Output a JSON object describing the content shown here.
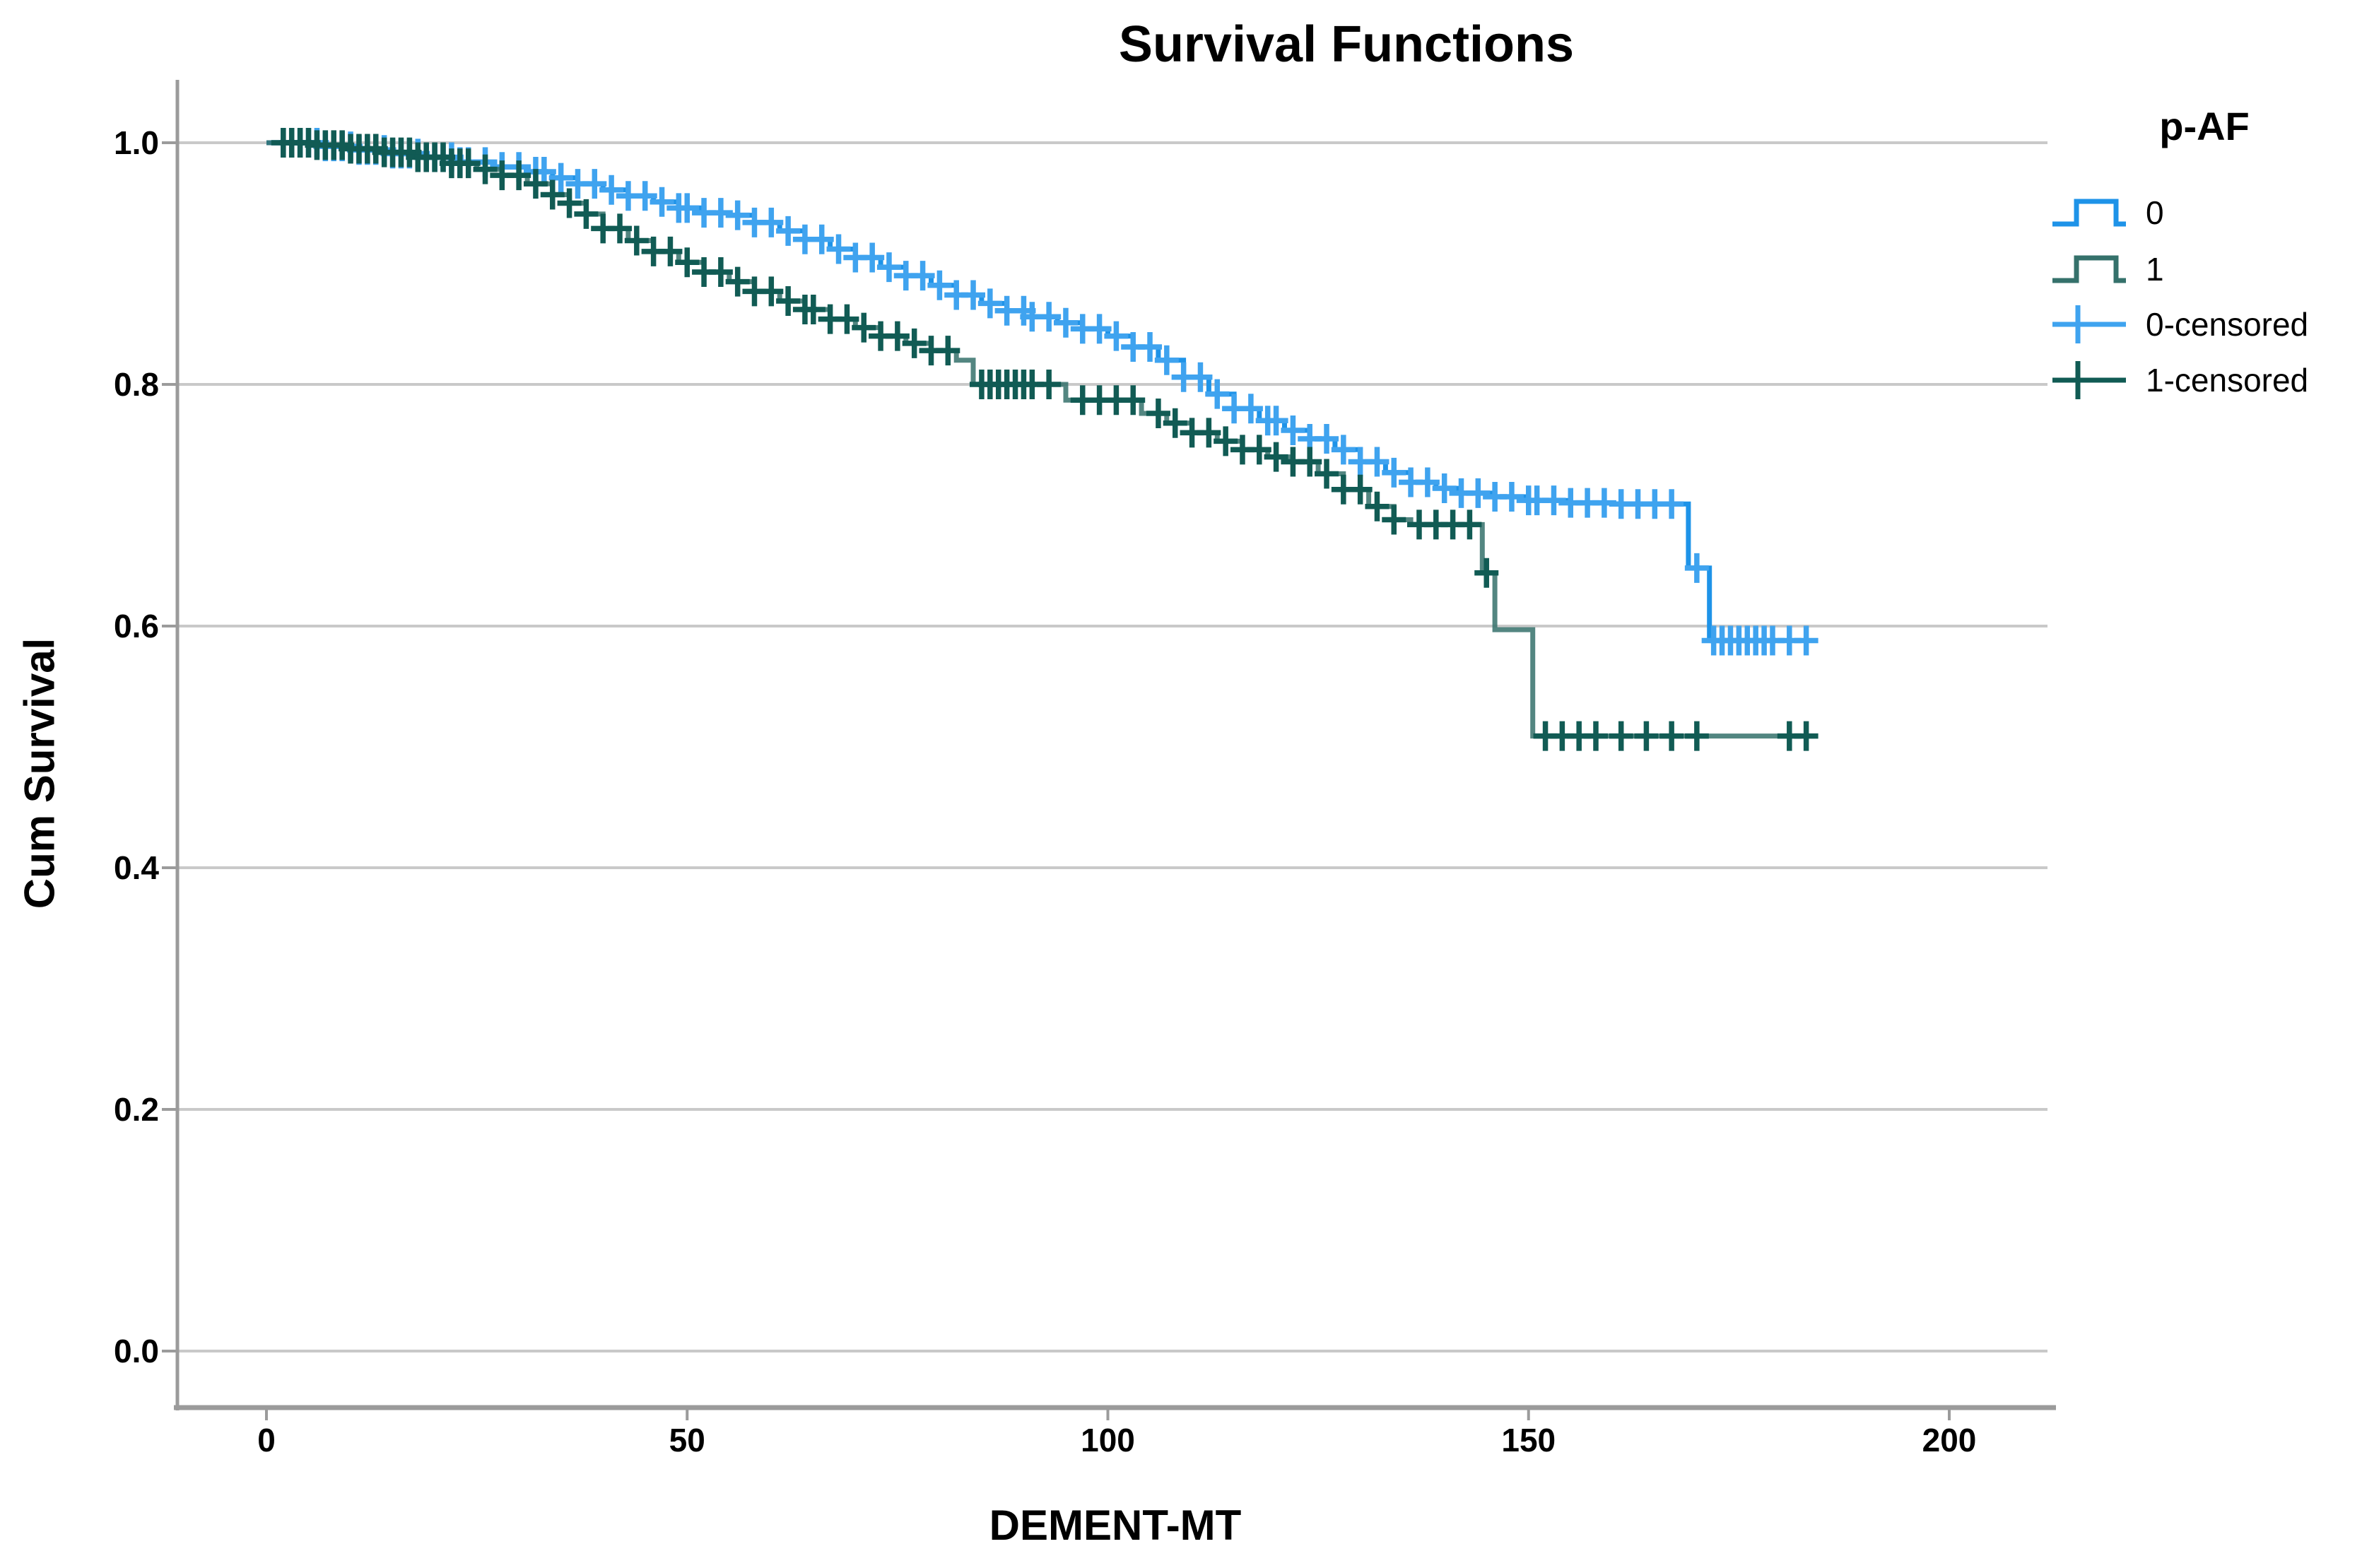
{
  "title": "Survival Functions",
  "x_axis": {
    "label": "DEMENT-MT",
    "ticks": [
      {
        "label": "0",
        "value": 0
      },
      {
        "label": "50",
        "value": 50
      },
      {
        "label": "100",
        "value": 100
      },
      {
        "label": "150",
        "value": 150
      },
      {
        "label": "200",
        "value": 200
      }
    ]
  },
  "y_axis": {
    "label": "Cum Survival",
    "ticks": [
      {
        "label": "1.0",
        "value": 1.0
      },
      {
        "label": "0.8",
        "value": 0.8
      },
      {
        "label": "0.6",
        "value": 0.6
      },
      {
        "label": "0.4",
        "value": 0.4
      },
      {
        "label": "0.2",
        "value": 0.2
      },
      {
        "label": "0.0",
        "value": 0.0
      }
    ]
  },
  "legend": {
    "title": "p-AF",
    "items": [
      {
        "label": "0",
        "type": "line",
        "color_key": "group0_line"
      },
      {
        "label": "1",
        "type": "line",
        "color_key": "group1_line"
      },
      {
        "label": "0-censored",
        "type": "censor",
        "color_key": "group0_censor"
      },
      {
        "label": "1-censored",
        "type": "censor",
        "color_key": "group1_censor"
      }
    ]
  },
  "colors": {
    "group0_line": "#1E93E8",
    "group0_censor": "#3FA3EF",
    "group1_line": "#35716B",
    "group1_censor": "#115B54",
    "grid": "#C9C9C9",
    "axis": "#9B9B9B",
    "text": "#000000"
  },
  "chart_data": {
    "type": "line",
    "subtype": "kaplan-meier-step-function",
    "title": "Survival Functions",
    "xlabel": "DEMENT-MT",
    "ylabel": "Cum Survival",
    "xlim": [
      0,
      212
    ],
    "ylim": [
      0.0,
      1.05
    ],
    "grid": "horizontal",
    "legend_position": "right",
    "legend_title": "p-AF",
    "series": [
      {
        "name": "0",
        "steps": [
          [
            0,
            1.0
          ],
          [
            7,
            0.997
          ],
          [
            11,
            0.994
          ],
          [
            15,
            0.991
          ],
          [
            19,
            0.988
          ],
          [
            23,
            0.984
          ],
          [
            27,
            0.98
          ],
          [
            31,
            0.976
          ],
          [
            34,
            0.971
          ],
          [
            37,
            0.966
          ],
          [
            40,
            0.961
          ],
          [
            43,
            0.956
          ],
          [
            46,
            0.951
          ],
          [
            49,
            0.946
          ],
          [
            52,
            0.942
          ],
          [
            55,
            0.94
          ],
          [
            58,
            0.934
          ],
          [
            61,
            0.927
          ],
          [
            64,
            0.92
          ],
          [
            67,
            0.912
          ],
          [
            70,
            0.905
          ],
          [
            73,
            0.897
          ],
          [
            76,
            0.89
          ],
          [
            79,
            0.882
          ],
          [
            82,
            0.874
          ],
          [
            85,
            0.867
          ],
          [
            88,
            0.861
          ],
          [
            91,
            0.856
          ],
          [
            94,
            0.851
          ],
          [
            97,
            0.846
          ],
          [
            100,
            0.84
          ],
          [
            103,
            0.831
          ],
          [
            106,
            0.82
          ],
          [
            109,
            0.806
          ],
          [
            112,
            0.792
          ],
          [
            115,
            0.78
          ],
          [
            118,
            0.77
          ],
          [
            121,
            0.762
          ],
          [
            124,
            0.755
          ],
          [
            127,
            0.746
          ],
          [
            130,
            0.736
          ],
          [
            133,
            0.727
          ],
          [
            136,
            0.719
          ],
          [
            139,
            0.714
          ],
          [
            142,
            0.71
          ],
          [
            146,
            0.707
          ],
          [
            150,
            0.704
          ],
          [
            155,
            0.702
          ],
          [
            160,
            0.701
          ],
          [
            169,
            0.7
          ],
          [
            169,
            0.648
          ],
          [
            171.5,
            0.648
          ],
          [
            171.5,
            0.588
          ],
          [
            184,
            0.588
          ]
        ],
        "censored_t": [
          2,
          3,
          4,
          5,
          6,
          7,
          8,
          9,
          10,
          11,
          12,
          13,
          14,
          15,
          16,
          17,
          18,
          19,
          20,
          21,
          22,
          23,
          24,
          26,
          28,
          30,
          32,
          33,
          35,
          37,
          39,
          41,
          43,
          45,
          47,
          49,
          50,
          52,
          54,
          56,
          58,
          60,
          62,
          64,
          66,
          68,
          70,
          72,
          74,
          76,
          78,
          80,
          82,
          84,
          86,
          88,
          90,
          91,
          93,
          95,
          97,
          99,
          101,
          103,
          105,
          107,
          109,
          111,
          113,
          115,
          117,
          119,
          120,
          122,
          124,
          126,
          128,
          130,
          132,
          134,
          136,
          138,
          140,
          142,
          144,
          146,
          148,
          150,
          151,
          153,
          155,
          157,
          159,
          161,
          163,
          165,
          167,
          170,
          172,
          173,
          174,
          175,
          176,
          177,
          178,
          179,
          181,
          183
        ]
      },
      {
        "name": "1",
        "steps": [
          [
            0,
            1.0
          ],
          [
            6,
            0.998
          ],
          [
            10,
            0.995
          ],
          [
            14,
            0.992
          ],
          [
            18,
            0.988
          ],
          [
            22,
            0.983
          ],
          [
            25,
            0.978
          ],
          [
            28,
            0.973
          ],
          [
            31,
            0.966
          ],
          [
            34,
            0.957
          ],
          [
            36,
            0.95
          ],
          [
            38,
            0.941
          ],
          [
            40,
            0.929
          ],
          [
            43,
            0.919
          ],
          [
            46,
            0.91
          ],
          [
            49,
            0.901
          ],
          [
            52,
            0.893
          ],
          [
            55,
            0.885
          ],
          [
            58,
            0.877
          ],
          [
            61,
            0.869
          ],
          [
            64,
            0.862
          ],
          [
            67,
            0.854
          ],
          [
            70,
            0.847
          ],
          [
            73,
            0.84
          ],
          [
            76,
            0.834
          ],
          [
            79,
            0.828
          ],
          [
            82,
            0.82
          ],
          [
            84,
            0.8
          ],
          [
            95,
            0.787
          ],
          [
            104,
            0.776
          ],
          [
            107,
            0.768
          ],
          [
            110,
            0.76
          ],
          [
            113,
            0.753
          ],
          [
            116,
            0.746
          ],
          [
            119,
            0.74
          ],
          [
            122,
            0.736
          ],
          [
            125,
            0.726
          ],
          [
            128,
            0.713
          ],
          [
            131,
            0.699
          ],
          [
            134,
            0.688
          ],
          [
            136,
            0.684
          ],
          [
            144.5,
            0.644
          ],
          [
            146,
            0.597
          ],
          [
            150.5,
            0.509
          ],
          [
            184,
            0.509
          ]
        ],
        "censored_t": [
          2,
          3,
          4,
          5,
          6,
          7,
          8,
          9,
          10,
          11,
          12,
          13,
          14,
          15,
          16,
          17,
          18,
          19,
          20,
          21,
          22,
          23,
          24,
          26,
          28,
          30,
          32,
          34,
          36,
          38,
          40,
          42,
          44,
          46,
          48,
          50,
          52,
          54,
          56,
          58,
          60,
          62,
          64,
          65,
          67,
          69,
          71,
          73,
          75,
          77,
          79,
          81,
          85,
          86,
          87,
          88,
          89,
          90,
          91,
          93,
          97,
          99,
          101,
          103,
          106,
          108,
          110,
          112,
          114,
          116,
          118,
          120,
          122,
          124,
          126,
          128,
          130,
          132,
          134,
          137,
          139,
          141,
          143,
          145,
          152,
          154,
          156,
          158,
          161,
          164,
          167,
          170,
          181,
          183
        ]
      }
    ]
  }
}
